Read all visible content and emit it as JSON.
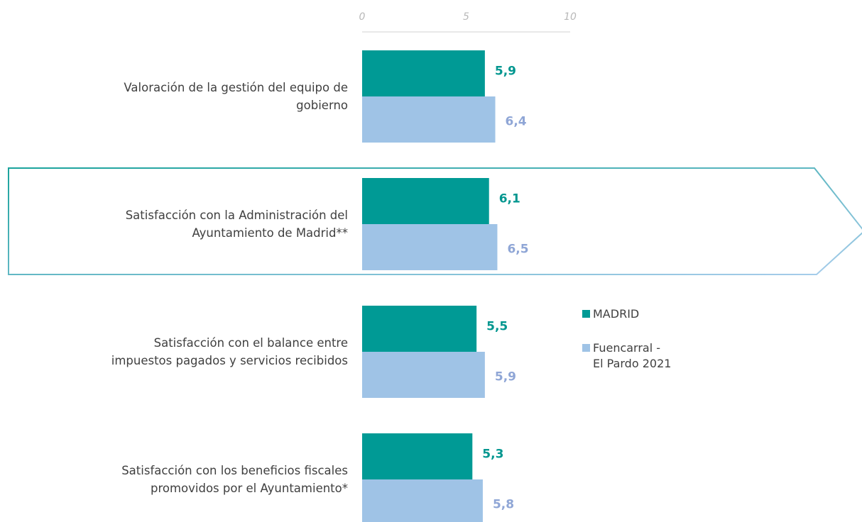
{
  "chart_data": {
    "type": "hbar",
    "categories": [
      "Valoración de la gestión del equipo de\ngobierno",
      "Satisfacción con la Administración del\nAyuntamiento de Madrid**",
      "Satisfacción con el balance entre\nimpuestos pagados y servicios recibidos",
      "Satisfacción con los beneficios fiscales\npromovidos por el Ayuntamiento*"
    ],
    "series": [
      {
        "name": "MADRID",
        "color": "#009a95",
        "label_color": "#00968f",
        "values": [
          5.9,
          6.1,
          5.5,
          5.3
        ],
        "value_labels": [
          "5,9",
          "6,1",
          "5,5",
          "5,3"
        ]
      },
      {
        "name": "Fuencarral -\nEl Pardo 2021",
        "color": "#9fc3e6",
        "label_color": "#8fa6d6",
        "values": [
          6.4,
          6.5,
          5.9,
          5.8
        ],
        "value_labels": [
          "6,4",
          "6,5",
          "5,9",
          "5,8"
        ]
      }
    ],
    "xlim": [
      0,
      10
    ],
    "xticks": [
      0,
      5,
      10
    ]
  }
}
